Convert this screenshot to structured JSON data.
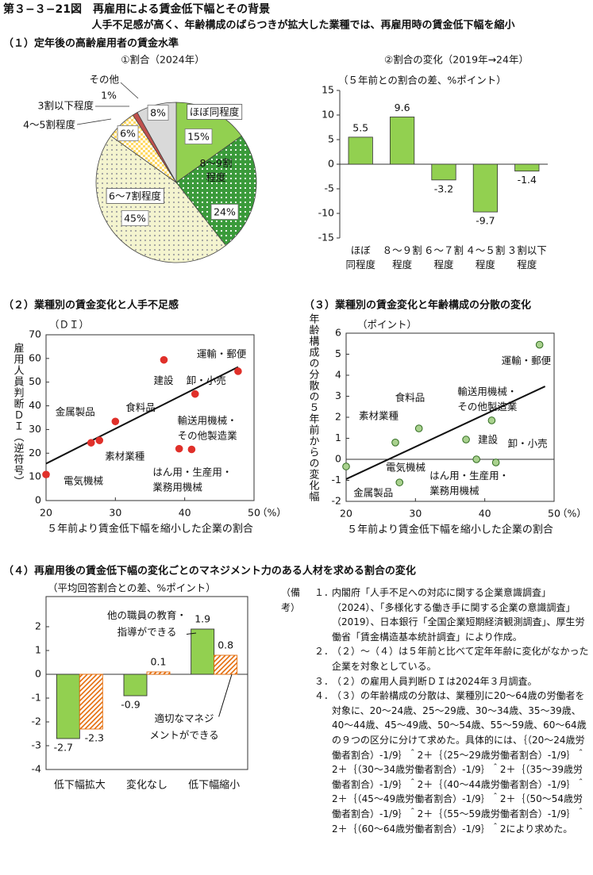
{
  "header": {
    "title": "第３−３−21図　再雇用による賃金低下幅とその背景",
    "subtitle": "人手不足感が高く、年齢構成のばらつきが拡大した業種では、再雇用時の賃金低下幅を縮小"
  },
  "sections": [
    "（１）定年後の高齢雇用者の賃金水準",
    "（２）業種別の賃金変化と人手不足感",
    "（３）業種別の賃金変化と年齢構成の分散の変化",
    "（４）再雇用後の賃金低下幅の変化ごとのマネジメント力のある人材を求める割合の変化"
  ],
  "chart_data": [
    {
      "type": "pie",
      "title": "①割合（2024年）",
      "categories": [
        "ほぼ同程度",
        "8～9割\n程度",
        "6～7割程度",
        "4～5割程度",
        "3割以下程度",
        "その他"
      ],
      "values": [
        15,
        24,
        45,
        6,
        1,
        8
      ],
      "value_labels": [
        "15%",
        "24%",
        "45%",
        "6%",
        "1%",
        "8%"
      ],
      "colors": [
        "#92d050",
        "#3a9a3a",
        "#f4f4cf",
        "#ffd966",
        "#c0504d",
        "#d9d9d9"
      ],
      "patterns": [
        "solid",
        "white-dots",
        "gray-dots",
        "white-checks",
        "solid",
        "solid"
      ]
    },
    {
      "type": "bar",
      "title": "②割合の変化（2019年→24年）",
      "y_label": "（５年前との割合の差、%ポイント）",
      "categories": [
        "ほぼ\n同程度",
        "８～９割\n程度",
        "６～７割\n程度",
        "４～５割\n程度",
        "３割以下\n程度"
      ],
      "values": [
        5.5,
        9.6,
        -3.2,
        -9.7,
        -1.4
      ],
      "color": "#92d050",
      "ylim": [
        -15,
        15
      ],
      "yticks": [
        -15,
        -10,
        -5,
        0,
        5,
        10,
        15
      ]
    },
    {
      "type": "scatter",
      "y_label": "雇用人員判断ＤＩ（逆符号）",
      "y_unit": "（ＤＩ）",
      "x_label": "５年前より賃金低下幅を縮小した企業の割合",
      "x_unit": "（%）",
      "point_labels": [
        "電気機械",
        "金属製品",
        "素材業種",
        "食料品",
        "建設",
        "運輸・郵便",
        "卸・小売",
        "輸送用機械・\nその他製造業",
        "はん用・生産用・\n業務用機械"
      ],
      "x": [
        20,
        26.5,
        27.7,
        30,
        37,
        47.7,
        41.5,
        39.2,
        41
      ],
      "values": [
        11,
        24.4,
        25.4,
        33.4,
        59.4,
        54.6,
        45,
        21.9,
        21.6
      ],
      "color": "#e0302a",
      "trendline": {
        "x": [
          20,
          47.7
        ],
        "values": [
          15.6,
          56.4
        ]
      },
      "xlim": [
        20,
        50
      ],
      "xticks": [
        20,
        30,
        40,
        50
      ],
      "ylim": [
        0,
        70
      ],
      "yticks": [
        0,
        10,
        20,
        30,
        40,
        50,
        60,
        70
      ]
    },
    {
      "type": "scatter",
      "y_label": "年齢構成の分散の５年前からの変化幅",
      "y_unit": "（ポイント）",
      "x_label": "５年前より賃金低下幅を縮小した企業の割合",
      "x_unit": "（%）",
      "point_labels": [
        "運輸・郵便",
        "輸送用機械・\nその他製造業",
        "食料品",
        "素材業種",
        "建設",
        "卸・小売",
        "はん用・生産用・\n業務用機械",
        "電気機械",
        "金属製品"
      ],
      "x": [
        47.9,
        41,
        30.5,
        27.1,
        37.3,
        41.6,
        38.8,
        20,
        27.7
      ],
      "values": [
        5.45,
        1.85,
        1.47,
        0.8,
        0.94,
        -0.15,
        0,
        -0.34,
        -1.1
      ],
      "color": "#a9d18e",
      "zero_line": true,
      "trendline": {
        "x": [
          20,
          48.7
        ],
        "values": [
          -0.94,
          3.47
        ]
      },
      "xlim": [
        20,
        50
      ],
      "xticks": [
        20,
        30,
        40,
        50
      ],
      "ylim": [
        -2,
        6
      ],
      "yticks": [
        -2,
        -1,
        0,
        1,
        2,
        3,
        4,
        5,
        6
      ]
    },
    {
      "type": "grouped_bar",
      "y_label": "（平均回答割合との差、%ポイント）",
      "categories": [
        "低下幅拡大",
        "変化なし",
        "低下幅縮小"
      ],
      "series": [
        {
          "name": "他の職員の教育・\n指導ができる",
          "color": "#92d050",
          "pattern": "solid",
          "values": [
            -2.7,
            -0.9,
            1.9
          ]
        },
        {
          "name": "適切なマネジ\nメントができる",
          "color": "#e46c0a",
          "pattern": "hatch",
          "values": [
            -2.3,
            0.1,
            0.8
          ]
        }
      ],
      "ylim": [
        -4,
        2
      ],
      "yticks": [
        -4,
        -3,
        -2,
        -1,
        0,
        1,
        2
      ]
    }
  ],
  "notes": {
    "label": "（備考）",
    "items": [
      {
        "marker": "１．",
        "text": "内閣府「人手不足への対応に関する企業意識調査」（2024）、「多様化する働き手に関する企業の意識調査」（2019）、日本銀行「全国企業短期経済観測調査」、厚生労働省「賃金構造基本統計調査」により作成。"
      },
      {
        "marker": "２．",
        "text": "（２）～（４）は５年前と比べて定年年齢に変化がなかった企業を対象としている。"
      },
      {
        "marker": "３．",
        "text": "（２）の雇用人員判断ＤＩは2024年３月調査。"
      },
      {
        "marker": "４．",
        "text": "（３）の年齢構成の分散は、業種別に20～64歳の労働者を対象に、20～24歳、25～29歳、30～34歳、35～39歳、40～44歳、45～49歳、50～54歳、55～59歳、60～64歳の９つの区分に分けて求めた。具体的には、｛（20～24歳労働者割合）-1/9｝＾2＋｛（25～29歳労働者割合）-1/9｝＾2＋｛（30～34歳労働者割合）-1/9｝＾2＋｛（35～39歳労働者割合）-1/9｝＾2＋｛（40～44歳労働者割合）-1/9｝＾2＋｛（45～49歳労働者割合）-1/9｝＾2＋｛（50～54歳労働者割合）-1/9｝＾2＋｛（55～59歳労働者割合）-1/9｝＾2＋｛（60～64歳労働者割合）-1/9｝＾2により求めた。"
      }
    ]
  }
}
